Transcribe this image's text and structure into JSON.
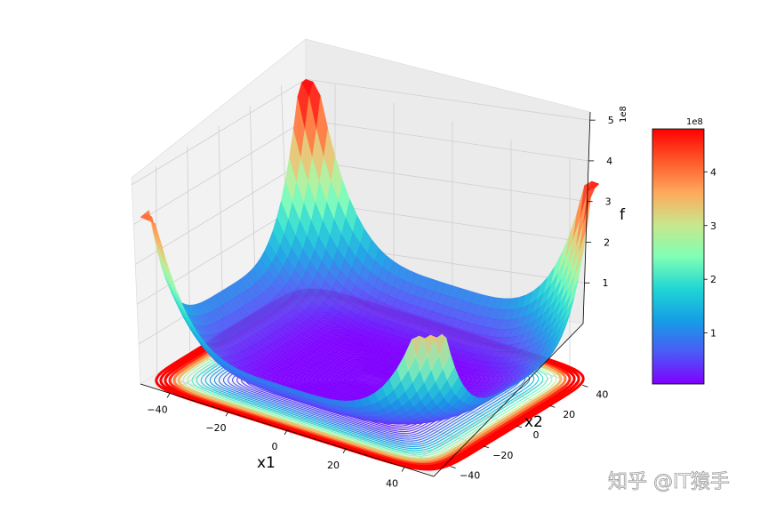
{
  "chart_data": {
    "type": "surface3d",
    "title": "",
    "function": "f(x1, x2), colormap rainbow, with projected contour lines on the floor",
    "x": {
      "label": "x1",
      "ticks": [
        -40,
        -20,
        0,
        20,
        40
      ],
      "range": [
        -50,
        50
      ]
    },
    "y": {
      "label": "x2",
      "ticks": [
        -40,
        -20,
        0,
        20,
        40
      ],
      "range": [
        -50,
        50
      ]
    },
    "z": {
      "label": "f",
      "ticks": [
        1,
        2,
        3,
        4,
        5
      ],
      "offset": "1e8",
      "range": [
        0,
        5.2
      ]
    },
    "corner_peaks_1e8": {
      "back_left": 5.0,
      "back_right": 4.7,
      "front_left": 4.1,
      "front_right": 3.3
    },
    "minimum_1e8": 0.0,
    "colorbar": {
      "ticks": [
        1,
        2,
        3,
        4
      ],
      "offset": "1e8",
      "min": 0.05,
      "max": 4.8,
      "colors": [
        "#8000ff",
        "#4a5bf6",
        "#159ee6",
        "#20d7d4",
        "#80ffb4",
        "#c9e78c",
        "#ffa95b",
        "#ff5829",
        "#ff0000"
      ]
    },
    "grid": true
  },
  "watermark": "知乎 @IT猿手"
}
